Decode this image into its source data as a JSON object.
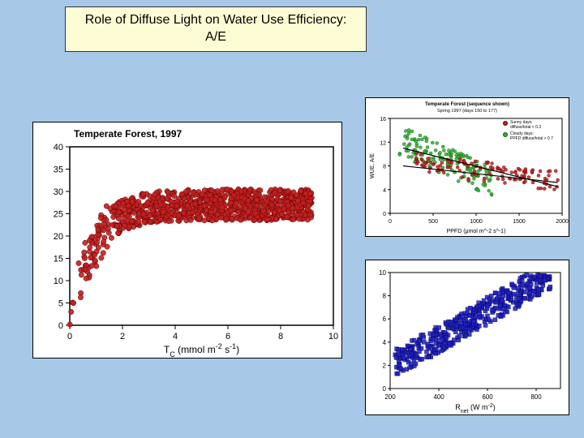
{
  "title": "Role of Diffuse Light on Water Use Efficiency: A/E",
  "background_color": "#a8c8e8",
  "title_box": {
    "bg": "#fdfdd5",
    "border": "#333333",
    "fontsize": 16
  },
  "main_chart": {
    "type": "scatter",
    "title": "Temperate Forest, 1997",
    "title_fontsize": 12,
    "xlabel": "T_C (mmol m^-2 s^-1)",
    "xlim": [
      0,
      10
    ],
    "xtick_step": 2,
    "ylim": [
      0,
      40
    ],
    "ytick_step": 10,
    "point_color": "#c02020",
    "point_radius": 3.2,
    "point_stroke": "#600000",
    "background_color": "#ffffff",
    "axis_color": "#000000",
    "n_points": 900,
    "curve": {
      "a": 27,
      "b": 1.2,
      "noise": 3.5
    }
  },
  "top_right_chart": {
    "type": "scatter",
    "title": "Temperate Forest (sequence shown)",
    "subtitle": "Spring 1997 (days 150 to 177)",
    "xlabel": "PPFD (μmol m^-2 s^-1)",
    "ylabel": "WUE, A/E",
    "xlim": [
      0,
      2000
    ],
    "xticks": [
      0,
      500,
      1000,
      1500,
      2000
    ],
    "ylim": [
      0,
      16
    ],
    "series": [
      {
        "label": "Sunny days:\ndiffuse/total < 0.3",
        "color": "#c02020",
        "stroke": "#600000",
        "n": 120,
        "trend": "down_shallow"
      },
      {
        "label": "Cloudy days:\nPPFD diffuse/total > 0.7",
        "color": "#30b030",
        "stroke": "#106010",
        "n": 150,
        "trend": "down_steep"
      }
    ],
    "legend_fontsize": 5,
    "trend_lines": [
      {
        "x1": 150,
        "y1": 11,
        "x2": 1950,
        "y2": 4.5,
        "color": "#000000"
      },
      {
        "x1": 150,
        "y1": 8,
        "x2": 1950,
        "y2": 5.2,
        "color": "#000000"
      }
    ],
    "background_color": "#ffffff"
  },
  "bottom_right_chart": {
    "type": "scatter",
    "xlabel": "R_net (W m^-2)",
    "xlim": [
      200,
      900
    ],
    "xticks": [
      200,
      400,
      600,
      800
    ],
    "ylim": [
      0,
      10
    ],
    "ytick_step": 2,
    "point_color": "#2020c0",
    "point_stroke": "#000060",
    "point_radius": 2.5,
    "n_points": 450,
    "trend": {
      "slope": 0.012,
      "intercept": -0.5,
      "noise": 1.2
    },
    "background_color": "#ffffff"
  }
}
